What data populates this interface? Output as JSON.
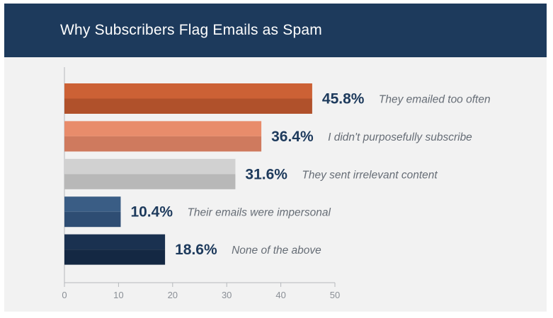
{
  "colors": {
    "header_bg": "#1d3a5c",
    "panel_bg": "#f2f2f2",
    "value_text": "#1d3a5c",
    "category_text": "#666d76",
    "axis": "#b5b8bc"
  },
  "chart_data": {
    "type": "bar",
    "orientation": "horizontal",
    "title": "Why Subscribers Flag Emails as Spam",
    "categories": [
      "They emailed too often",
      "I didn't purposefully subscribe",
      "They sent irrelevant content",
      "Their emails were impersonal",
      "None of the above"
    ],
    "values": [
      45.8,
      36.4,
      31.6,
      10.4,
      18.6
    ],
    "value_labels": [
      "45.8%",
      "36.4%",
      "31.6%",
      "10.4%",
      "18.6%"
    ],
    "bar_colors": [
      {
        "top": "#cc6135",
        "bottom": "#b0512b"
      },
      {
        "top": "#e88c6b",
        "bottom": "#cf7a5e"
      },
      {
        "top": "#d1d1d1",
        "bottom": "#b8b8b8"
      },
      {
        "top": "#3a5d85",
        "bottom": "#2e4d73"
      },
      {
        "top": "#1a3150",
        "bottom": "#142843"
      }
    ],
    "xlim": [
      0,
      50
    ],
    "xticks": [
      0,
      10,
      20,
      30,
      40,
      50
    ],
    "xtick_labels": [
      "0",
      "10",
      "20",
      "30",
      "40",
      "50"
    ],
    "grid": false,
    "legend": "none"
  }
}
